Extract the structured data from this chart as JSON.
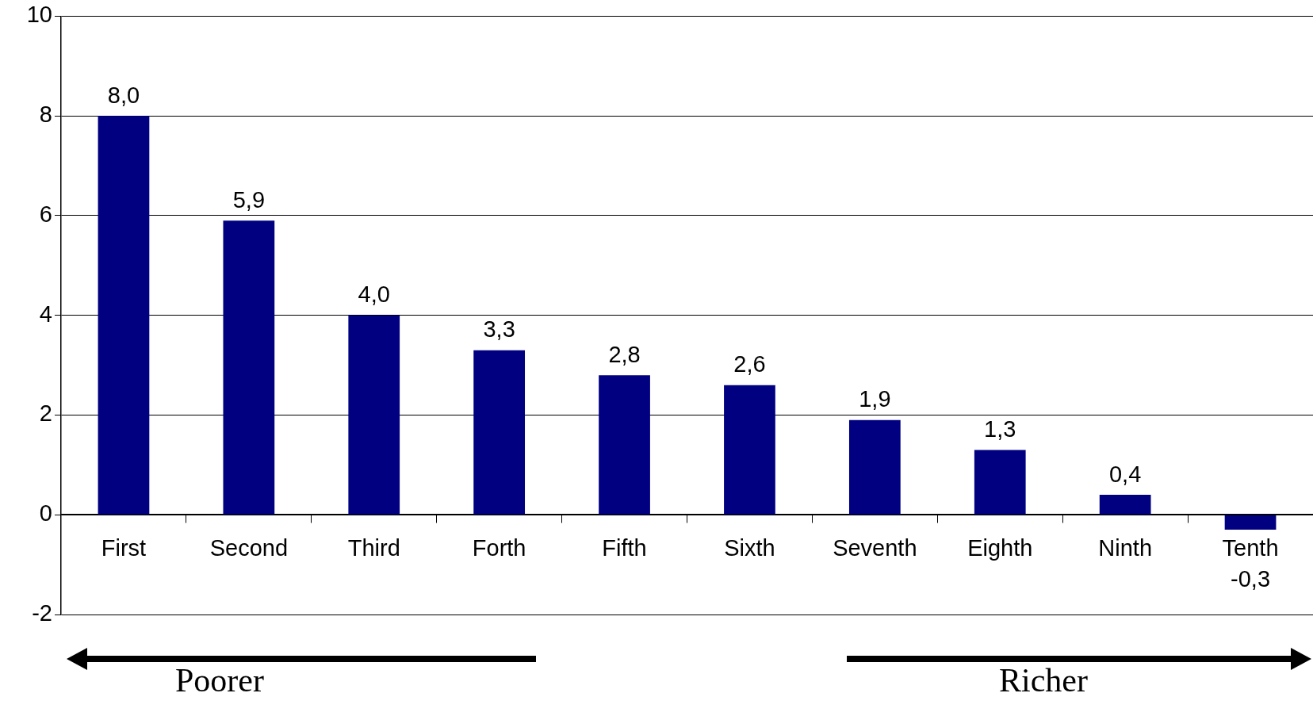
{
  "chart_data": {
    "type": "bar",
    "categories": [
      "First",
      "Second",
      "Third",
      "Forth",
      "Fifth",
      "Sixth",
      "Seventh",
      "Eighth",
      "Ninth",
      "Tenth"
    ],
    "values": [
      8.0,
      5.9,
      4.0,
      3.3,
      2.8,
      2.6,
      1.9,
      1.3,
      0.4,
      -0.3
    ],
    "value_labels": [
      "8,0",
      "5,9",
      "4,0",
      "3,3",
      "2,8",
      "2,6",
      "1,9",
      "1,3",
      "0,4",
      "-0,3"
    ],
    "color": "#000080",
    "ylim": [
      -2,
      10
    ],
    "yticks": [
      -2,
      0,
      2,
      4,
      6,
      8,
      10
    ],
    "grid": "y",
    "legend": false,
    "annotations": [
      "Poorer",
      "Richer"
    ]
  }
}
